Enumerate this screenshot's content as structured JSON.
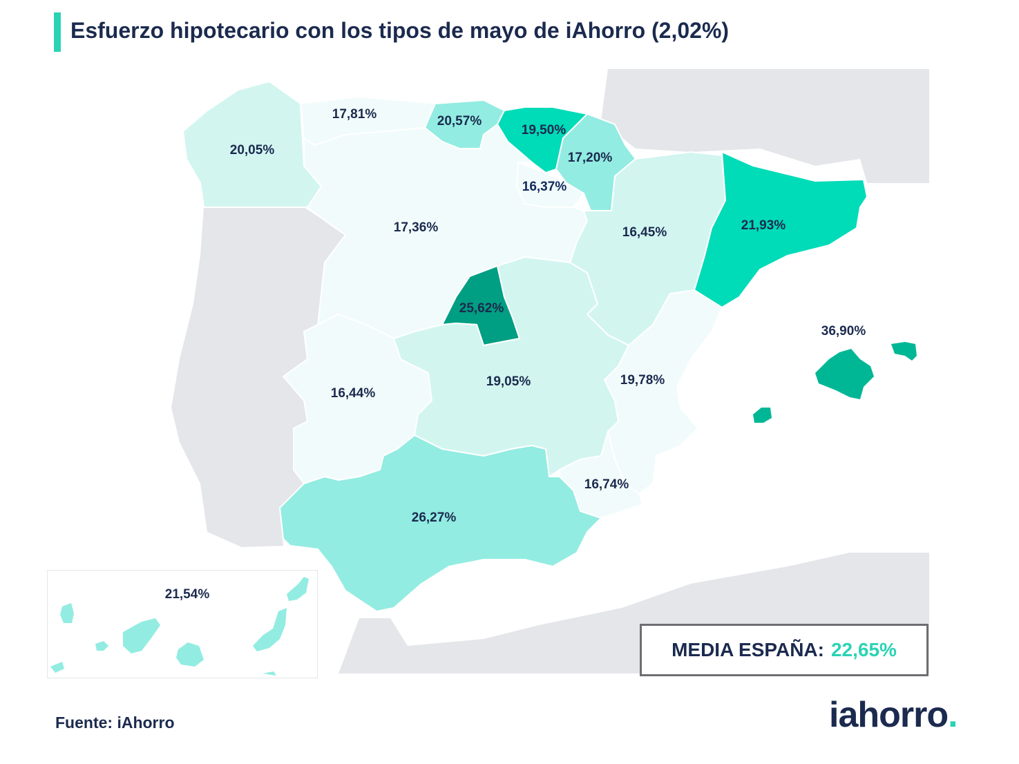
{
  "title": "Esfuerzo hipotecario con los tipos de mayo de iAhorro (2,02%)",
  "colors": {
    "accent": "#2ad3b4",
    "text": "#1b2a4e",
    "land_other": "#e4e6ea",
    "scale": [
      "#f1fbfb",
      "#d2f5f0",
      "#92ece1",
      "#00dbb8",
      "#00b795",
      "#009e82"
    ]
  },
  "regions": [
    {
      "name": "Galicia",
      "value": "20,05%"
    },
    {
      "name": "Asturias",
      "value": "17,81%"
    },
    {
      "name": "Cantabria",
      "value": "20,57%"
    },
    {
      "name": "País Vasco",
      "value": "19,50%"
    },
    {
      "name": "Navarra",
      "value": "17,20%"
    },
    {
      "name": "La Rioja",
      "value": "16,37%"
    },
    {
      "name": "Castilla y León",
      "value": "17,36%"
    },
    {
      "name": "Aragón",
      "value": "16,45%"
    },
    {
      "name": "Cataluña",
      "value": "21,93%"
    },
    {
      "name": "Madrid",
      "value": "25,62%"
    },
    {
      "name": "Baleares",
      "value": "36,90%"
    },
    {
      "name": "Extremadura",
      "value": "16,44%"
    },
    {
      "name": "Castilla-La Mancha",
      "value": "19,05%"
    },
    {
      "name": "Comunidad Valenciana",
      "value": "19,78%"
    },
    {
      "name": "Murcia",
      "value": "16,74%"
    },
    {
      "name": "Andalucía",
      "value": "26,27%"
    },
    {
      "name": "Canarias",
      "value": "21,54%"
    }
  ],
  "media": {
    "label": "MEDIA ESPAÑA:",
    "value": "22,65%"
  },
  "source": "Fuente: iAhorro",
  "logo": {
    "text": "iahorro",
    "dot": "."
  }
}
